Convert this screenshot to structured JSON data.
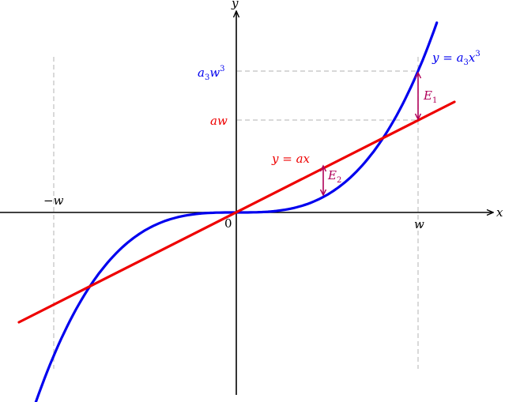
{
  "axes": {
    "x_label": "x",
    "y_label": "y",
    "origin_label": "0"
  },
  "ticks": {
    "w": "w",
    "minus_w": "−w",
    "aw": "aw",
    "a3w3_base": "a",
    "a3w3_sub": "3",
    "a3w3_var": "w",
    "a3w3_sup": "3"
  },
  "curves": {
    "cubic_lhs": "y = a",
    "cubic_sub": "3",
    "cubic_var": "x",
    "cubic_sup": "3",
    "linear": "y = ax"
  },
  "errors": {
    "e1_base": "E",
    "e1_sub": "1",
    "e2_base": "E",
    "e2_sub": "2"
  },
  "colors": {
    "cubic": "#0000ee",
    "linear": "#ee0000",
    "error": "#b0005a",
    "guide": "#c0c0c0",
    "axis": "#000000"
  },
  "chart_data": {
    "type": "line",
    "series": [
      {
        "name": "y = a3x3",
        "expression": "a3*x^3",
        "x_range": [
          -1.1,
          1.1
        ]
      },
      {
        "name": "y = ax",
        "expression": "a*x",
        "x_range": [
          -1.2,
          1.2
        ]
      }
    ],
    "guides": {
      "x": [
        "−w",
        "w"
      ],
      "y": [
        "aw",
        "a3w3"
      ]
    },
    "errors": [
      {
        "name": "E1",
        "at": "w",
        "between": [
          "a3w3",
          "aw"
        ]
      },
      {
        "name": "E2",
        "at": "0.49w",
        "between": [
          "a*x",
          "a3*x^3"
        ]
      }
    ]
  }
}
